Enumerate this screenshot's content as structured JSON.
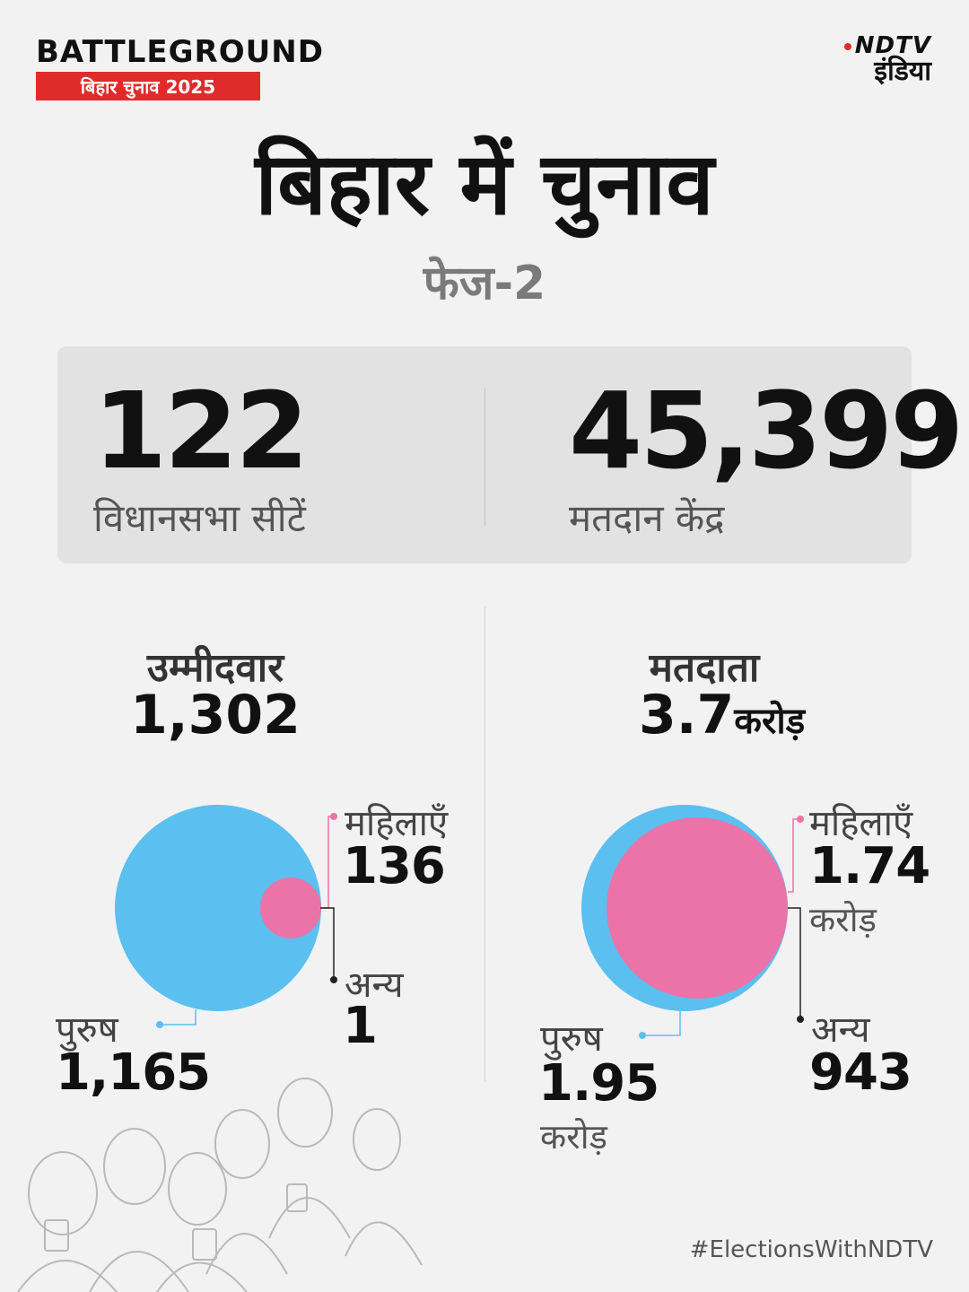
{
  "header": {
    "brand": "BATTLEGROUND",
    "brand_sub": "बिहार चुनाव 2025",
    "logo_line1": "NDTV",
    "logo_line2": "इंडिया"
  },
  "title": "बिहार में चुनाव",
  "subtitle": "फेज-2",
  "stats": {
    "seats_value": "122",
    "seats_label": "विधानसभा सीटें",
    "booths_value": "45,399",
    "booths_label": "मतदान केंद्र"
  },
  "candidates": {
    "heading": "उम्मीदवार",
    "total": "1,302",
    "women_label": "महिलाएँ",
    "women_value": "136",
    "other_label": "अन्य",
    "other_value": "1",
    "men_label": "पुरुष",
    "men_value": "1,165",
    "data": {
      "men": 1165,
      "women": 136,
      "other": 1
    }
  },
  "voters": {
    "heading": "मतदाता",
    "total": "3.7",
    "total_unit": "करोड़",
    "women_label": "महिलाएँ",
    "women_value": "1.74",
    "women_unit": "करोड़",
    "other_label": "अन्य",
    "other_value": "943",
    "men_label": "पुरुष",
    "men_value": "1.95",
    "men_unit": "करोड़",
    "data": {
      "men_crore": 1.95,
      "women_crore": 1.74,
      "other": 943
    }
  },
  "colors": {
    "men": "#5bbff0",
    "women": "#ec73a8",
    "accent_red": "#e02b2b"
  },
  "hashtag": "#ElectionsWithNDTV"
}
